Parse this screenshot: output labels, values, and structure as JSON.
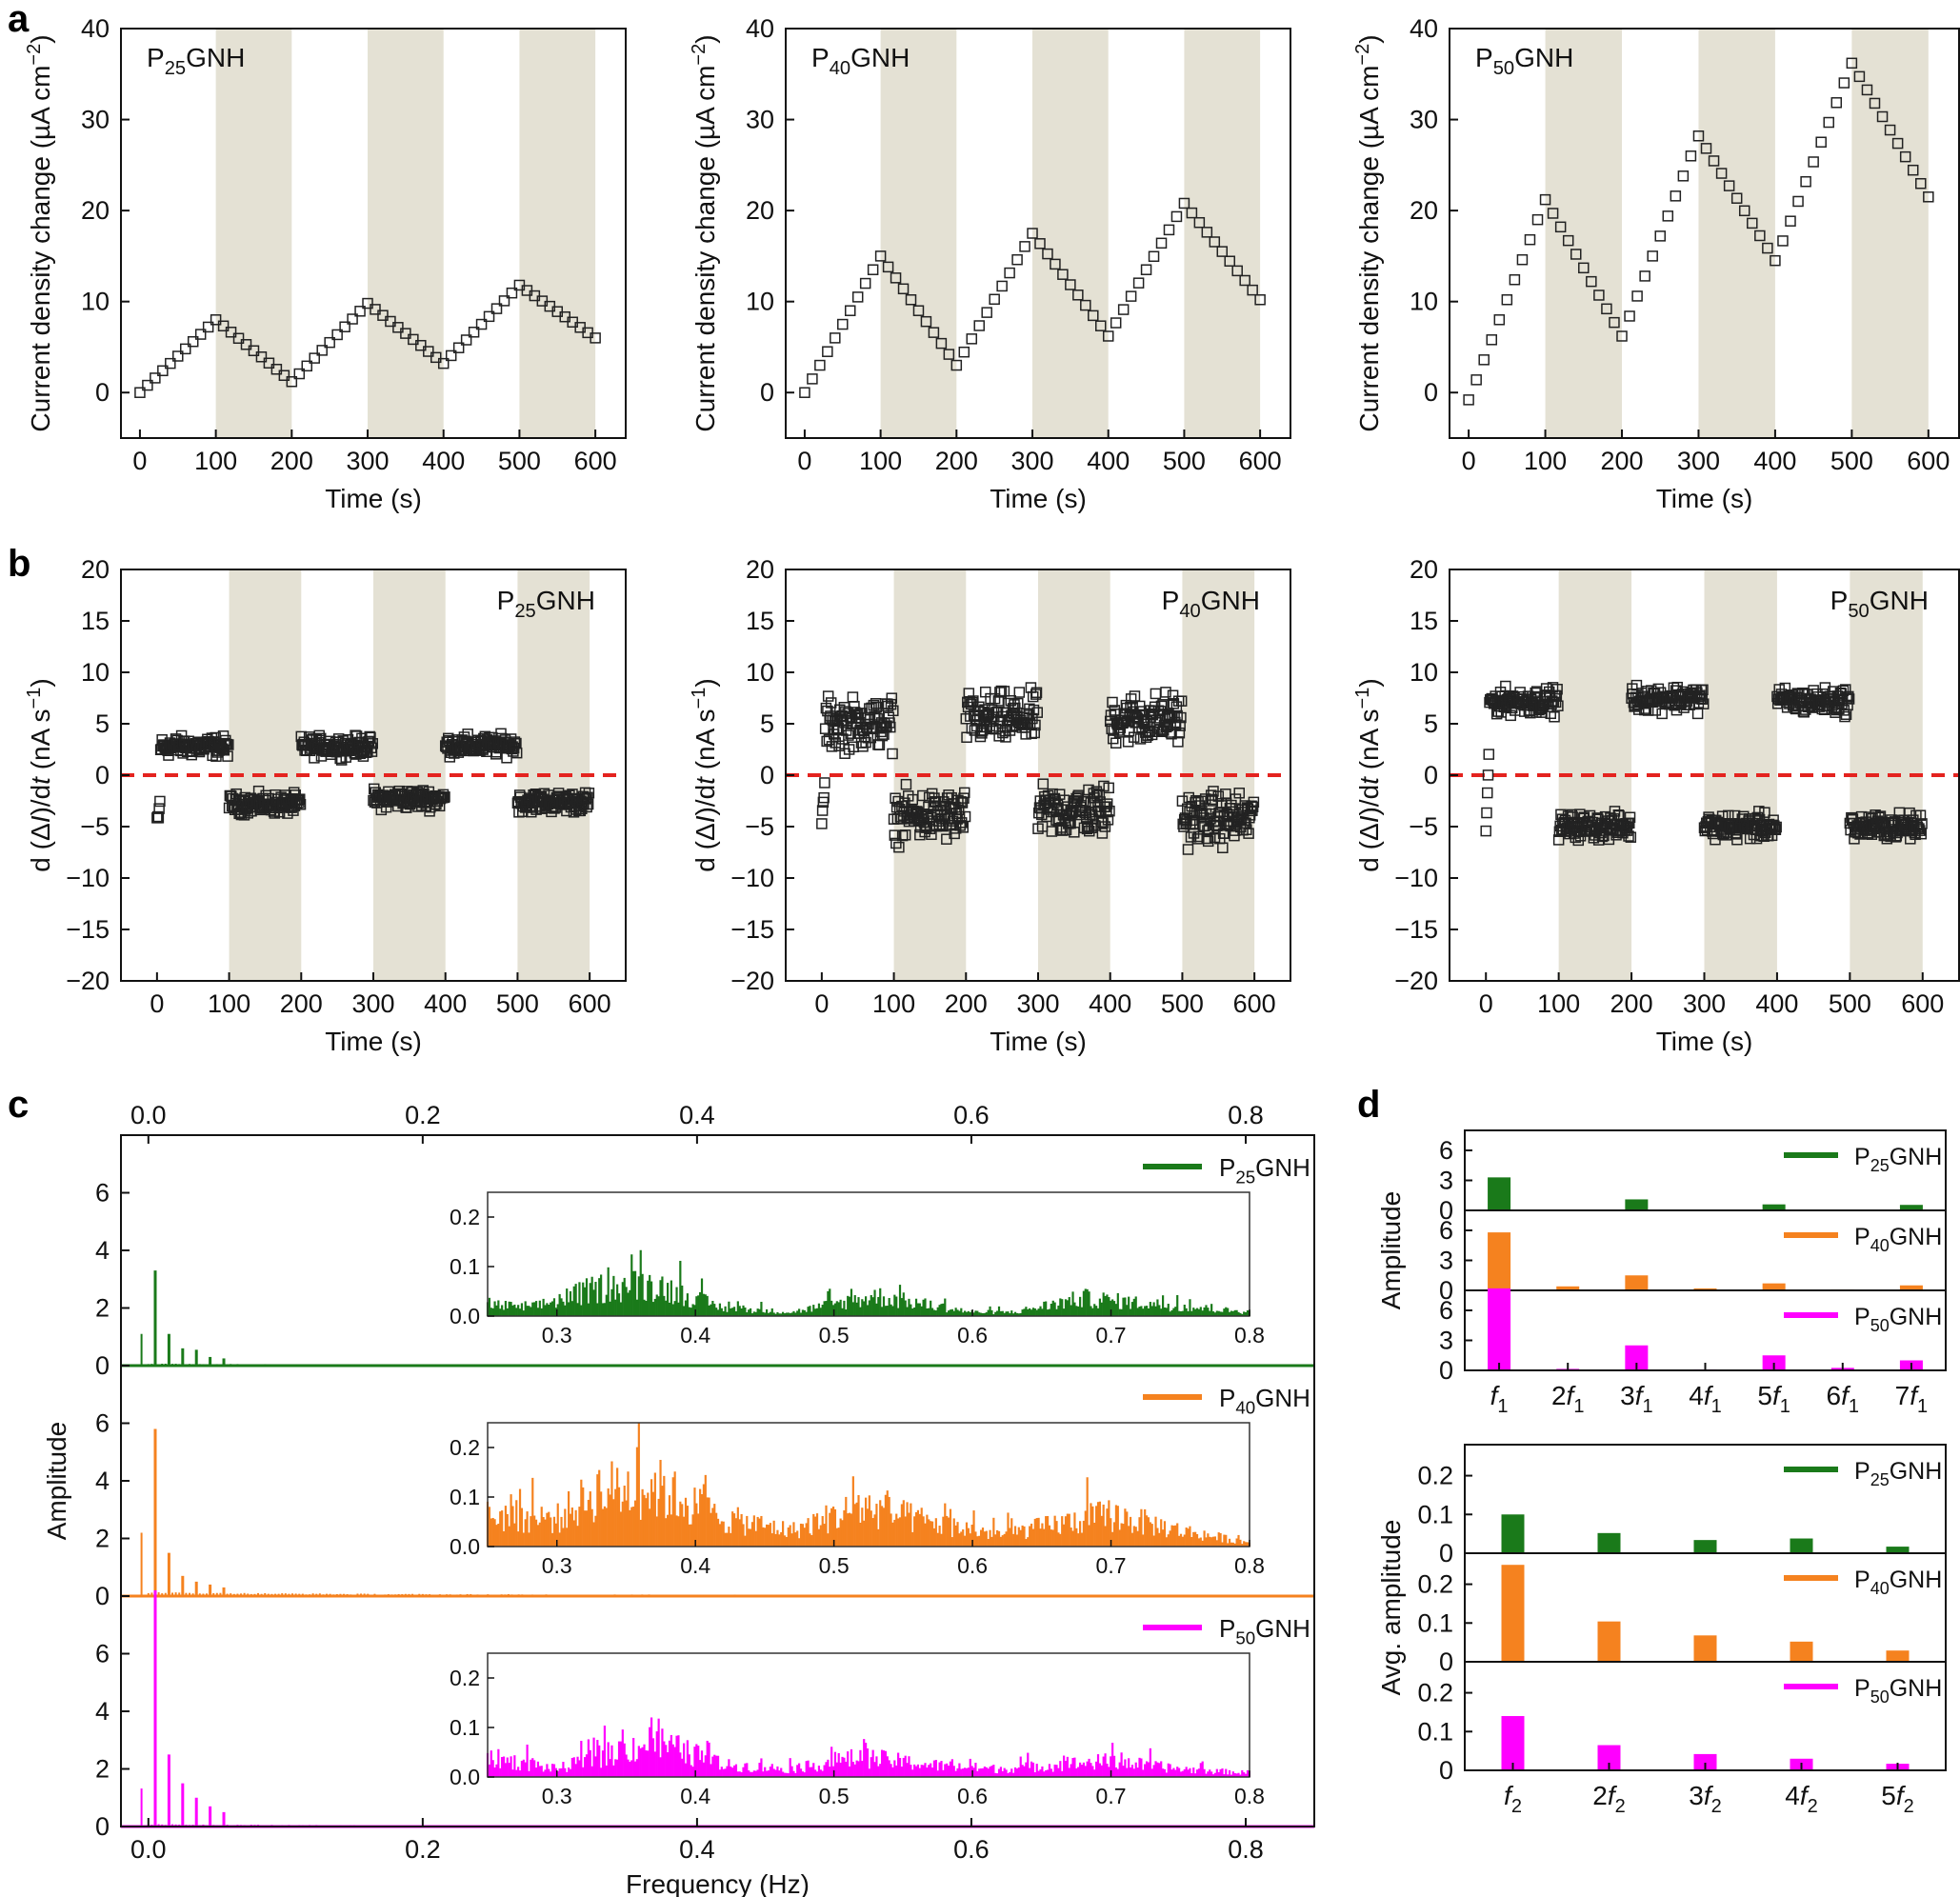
{
  "figure": {
    "panel_letters": [
      "a",
      "b",
      "c",
      "d"
    ],
    "samples": [
      {
        "key": "P25",
        "base": "P",
        "sub": "25",
        "tail": "GNH",
        "color": "#1a7a1a"
      },
      {
        "key": "P40",
        "base": "P",
        "sub": "40",
        "tail": "GNH",
        "color": "#f5821f"
      },
      {
        "key": "P50",
        "base": "P",
        "sub": "50",
        "tail": "GNH",
        "color": "#ff00ff"
      }
    ],
    "zero_line_color": "#e4231f",
    "shade_color": "#e4e1d4"
  },
  "chart_data": [
    {
      "id": "a-P25",
      "panel": "a",
      "type": "scatter",
      "marker": "open-square",
      "label": "P25GNH",
      "xlabel": "Time (s)",
      "ylabel": "Current density change (µA cm−2)",
      "xlim": [
        -25,
        640
      ],
      "ylim": [
        -5,
        40
      ],
      "xticks": [
        0,
        100,
        200,
        300,
        400,
        500,
        600
      ],
      "yticks": [
        0,
        10,
        20,
        30,
        40
      ],
      "shaded_intervals": [
        [
          100,
          200
        ],
        [
          300,
          400
        ],
        [
          500,
          600
        ]
      ],
      "profile": [
        [
          0,
          0
        ],
        [
          100,
          8
        ],
        [
          200,
          1.2
        ],
        [
          300,
          9.8
        ],
        [
          400,
          3.2
        ],
        [
          500,
          11.8
        ],
        [
          600,
          6
        ]
      ],
      "x_step": 10
    },
    {
      "id": "a-P40",
      "panel": "a",
      "type": "scatter",
      "marker": "open-square",
      "label": "P40GNH",
      "xlabel": "Time (s)",
      "ylabel": "Current density change (µA cm−2)",
      "xlim": [
        -25,
        640
      ],
      "ylim": [
        -5,
        40
      ],
      "xticks": [
        0,
        100,
        200,
        300,
        400,
        500,
        600
      ],
      "yticks": [
        0,
        10,
        20,
        30,
        40
      ],
      "shaded_intervals": [
        [
          100,
          200
        ],
        [
          300,
          400
        ],
        [
          500,
          600
        ]
      ],
      "profile": [
        [
          0,
          0
        ],
        [
          100,
          15
        ],
        [
          200,
          3
        ],
        [
          300,
          17.5
        ],
        [
          400,
          6.2
        ],
        [
          500,
          20.8
        ],
        [
          600,
          10.2
        ]
      ],
      "x_step": 10
    },
    {
      "id": "a-P50",
      "panel": "a",
      "type": "scatter",
      "marker": "open-square",
      "label": "P50GNH",
      "xlabel": "Time (s)",
      "ylabel": "Current density change (µA cm−2)",
      "xlim": [
        -25,
        640
      ],
      "ylim": [
        -5,
        40
      ],
      "xticks": [
        0,
        100,
        200,
        300,
        400,
        500,
        600
      ],
      "yticks": [
        0,
        10,
        20,
        30,
        40
      ],
      "shaded_intervals": [
        [
          100,
          200
        ],
        [
          300,
          400
        ],
        [
          500,
          600
        ]
      ],
      "profile": [
        [
          0,
          -0.8
        ],
        [
          100,
          21.2
        ],
        [
          200,
          6.2
        ],
        [
          300,
          28.2
        ],
        [
          400,
          14.5
        ],
        [
          500,
          36.2
        ],
        [
          600,
          21.5
        ]
      ],
      "x_step": 10
    },
    {
      "id": "b-P25",
      "panel": "b",
      "type": "scatter",
      "marker": "open-square",
      "label": "P25GNH",
      "xlabel": "Time (s)",
      "ylabel": "d (ΔI)/dt (nA s−1)",
      "xlim": [
        -50,
        650
      ],
      "ylim": [
        -20,
        20
      ],
      "xticks": [
        0,
        100,
        200,
        300,
        400,
        500,
        600
      ],
      "yticks": [
        -20,
        -15,
        -10,
        -5,
        0,
        5,
        10,
        15,
        20
      ],
      "shaded_intervals": [
        [
          100,
          200
        ],
        [
          300,
          400
        ],
        [
          500,
          600
        ]
      ],
      "zero_line": 0,
      "segment_means": [
        2.8,
        -2.8,
        2.8,
        -2.3,
        2.9,
        -2.6
      ],
      "noise_amplitude": 1.4,
      "n_points": 600
    },
    {
      "id": "b-P40",
      "panel": "b",
      "type": "scatter",
      "marker": "open-square",
      "label": "P40GNH",
      "xlabel": "Time (s)",
      "ylabel": "d (ΔI)/dt (nA s−1)",
      "xlim": [
        -50,
        650
      ],
      "ylim": [
        -20,
        20
      ],
      "xticks": [
        0,
        100,
        200,
        300,
        400,
        500,
        600
      ],
      "yticks": [
        -20,
        -15,
        -10,
        -5,
        0,
        5,
        10,
        15,
        20
      ],
      "shaded_intervals": [
        [
          100,
          200
        ],
        [
          300,
          400
        ],
        [
          500,
          600
        ]
      ],
      "zero_line": 0,
      "segment_means": [
        5,
        -4,
        5.5,
        -3.5,
        5.5,
        -4.2
      ],
      "noise_amplitude": 3.6,
      "n_points": 600
    },
    {
      "id": "b-P50",
      "panel": "b",
      "type": "scatter",
      "marker": "open-square",
      "label": "P50GNH",
      "xlabel": "Time (s)",
      "ylabel": "d (ΔI)/dt (nA s−1)",
      "xlim": [
        -50,
        650
      ],
      "ylim": [
        -20,
        20
      ],
      "xticks": [
        0,
        100,
        200,
        300,
        400,
        500,
        600
      ],
      "yticks": [
        -20,
        -15,
        -10,
        -5,
        0,
        5,
        10,
        15,
        20
      ],
      "shaded_intervals": [
        [
          100,
          200
        ],
        [
          300,
          400
        ],
        [
          500,
          600
        ]
      ],
      "zero_line": 0,
      "segment_means": [
        7.2,
        -5,
        7.5,
        -5,
        7.2,
        -5
      ],
      "noise_amplitude": 1.8,
      "n_points": 600
    },
    {
      "id": "c",
      "panel": "c",
      "type": "bar",
      "title_top_axis_ticks": [
        0.0,
        0.2,
        0.4,
        0.6,
        0.8
      ],
      "xlabel": "Frequency (Hz)",
      "ylabel": "Amplitude",
      "xlim": [
        -0.02,
        0.85
      ],
      "ylim": [
        0,
        8
      ],
      "yticks": [
        0,
        2,
        4,
        6
      ],
      "xticks": [
        0.0,
        0.2,
        0.4,
        0.6,
        0.8
      ],
      "harmonic_frequency": 0.005,
      "series": [
        {
          "name": "P25GNH",
          "harmonics": [
            3.3,
            0,
            1.1,
            0,
            0.6,
            0,
            0.55,
            0,
            0.3,
            0,
            0.25
          ],
          "noise_level": 0.05
        },
        {
          "name": "P40GNH",
          "harmonics": [
            5.8,
            0,
            1.5,
            0,
            0.7,
            0,
            0.5,
            0,
            0.4,
            0,
            0.3
          ],
          "noise_level": 0.1
        },
        {
          "name": "P50GNH",
          "harmonics": [
            8.2,
            0,
            2.5,
            0,
            1.5,
            0,
            1.0,
            0,
            0.7,
            0,
            0.5
          ],
          "noise_level": 0.06
        }
      ],
      "inset": {
        "xlim": [
          0.25,
          0.8
        ],
        "ylim": [
          0,
          0.25
        ],
        "xticks": [
          0.3,
          0.4,
          0.5,
          0.6,
          0.7,
          0.8
        ],
        "yticks": [
          0.0,
          0.1,
          0.2
        ],
        "envelopes": [
          [
            [
              0.25,
              0.03
            ],
            [
              0.28,
              0.02
            ],
            [
              0.33,
              0.07
            ],
            [
              0.37,
              0.08
            ],
            [
              0.42,
              0.02
            ],
            [
              0.47,
              0.01
            ],
            [
              0.53,
              0.05
            ],
            [
              0.6,
              0.01
            ],
            [
              0.63,
              0.01
            ],
            [
              0.68,
              0.045
            ],
            [
              0.73,
              0.03
            ],
            [
              0.8,
              0.01
            ]
          ],
          [
            [
              0.25,
              0.08
            ],
            [
              0.3,
              0.07
            ],
            [
              0.33,
              0.14
            ],
            [
              0.37,
              0.15
            ],
            [
              0.42,
              0.07
            ],
            [
              0.47,
              0.04
            ],
            [
              0.52,
              0.1
            ],
            [
              0.57,
              0.06
            ],
            [
              0.62,
              0.03
            ],
            [
              0.7,
              0.08
            ],
            [
              0.75,
              0.04
            ],
            [
              0.8,
              0.01
            ]
          ],
          [
            [
              0.25,
              0.05
            ],
            [
              0.3,
              0.02
            ],
            [
              0.34,
              0.06
            ],
            [
              0.37,
              0.09
            ],
            [
              0.42,
              0.03
            ],
            [
              0.47,
              0.02
            ],
            [
              0.52,
              0.05
            ],
            [
              0.57,
              0.03
            ],
            [
              0.62,
              0.02
            ],
            [
              0.7,
              0.04
            ],
            [
              0.75,
              0.02
            ],
            [
              0.8,
              0.01
            ]
          ]
        ]
      }
    },
    {
      "id": "d-top",
      "panel": "d",
      "type": "bar",
      "ylabel": "Amplitude",
      "ylim": [
        0,
        8
      ],
      "yticks": [
        0,
        3,
        6
      ],
      "categories": [
        {
          "coef": "",
          "var": "f",
          "sub": "1"
        },
        {
          "coef": "2",
          "var": "f",
          "sub": "1"
        },
        {
          "coef": "3",
          "var": "f",
          "sub": "1"
        },
        {
          "coef": "4",
          "var": "f",
          "sub": "1"
        },
        {
          "coef": "5",
          "var": "f",
          "sub": "1"
        },
        {
          "coef": "6",
          "var": "f",
          "sub": "1"
        },
        {
          "coef": "7",
          "var": "f",
          "sub": "1"
        }
      ],
      "series": [
        {
          "name": "P25GNH",
          "values": [
            3.3,
            0.05,
            1.1,
            0.05,
            0.6,
            0.05,
            0.55
          ]
        },
        {
          "name": "P40GNH",
          "values": [
            5.8,
            0.4,
            1.5,
            0.2,
            0.7,
            0.1,
            0.5
          ]
        },
        {
          "name": "P50GNH",
          "values": [
            8.2,
            0.15,
            2.5,
            0.1,
            1.5,
            0.25,
            1.0
          ]
        }
      ]
    },
    {
      "id": "d-bottom",
      "panel": "d",
      "type": "bar",
      "ylabel": "Avg. amplitude",
      "ylim": [
        0,
        0.28
      ],
      "yticks": [
        0,
        0.1,
        0.2
      ],
      "ytick_labels": [
        "0",
        "0.1",
        "0.2"
      ],
      "categories": [
        {
          "coef": "",
          "var": "f",
          "sub": "2"
        },
        {
          "coef": "2",
          "var": "f",
          "sub": "2"
        },
        {
          "coef": "3",
          "var": "f",
          "sub": "2"
        },
        {
          "coef": "4",
          "var": "f",
          "sub": "2"
        },
        {
          "coef": "5",
          "var": "f",
          "sub": "2"
        }
      ],
      "series": [
        {
          "name": "P25GNH",
          "values": [
            0.1,
            0.052,
            0.034,
            0.038,
            0.017
          ]
        },
        {
          "name": "P40GNH",
          "values": [
            0.25,
            0.104,
            0.068,
            0.052,
            0.029
          ]
        },
        {
          "name": "P50GNH",
          "values": [
            0.14,
            0.065,
            0.042,
            0.03,
            0.017
          ]
        }
      ]
    }
  ]
}
